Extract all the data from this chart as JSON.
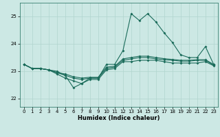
{
  "title": "",
  "xlabel": "Humidex (Indice chaleur)",
  "xlim": [
    -0.5,
    23.5
  ],
  "ylim": [
    21.7,
    25.5
  ],
  "yticks": [
    22,
    23,
    24,
    25
  ],
  "xticks": [
    0,
    1,
    2,
    3,
    4,
    5,
    6,
    7,
    8,
    9,
    10,
    11,
    12,
    13,
    14,
    15,
    16,
    17,
    18,
    19,
    20,
    21,
    22,
    23
  ],
  "bg_color": "#cce8e4",
  "line_color": "#1a6b5a",
  "grid_color": "#b0d4ce",
  "line1": [
    23.25,
    23.1,
    23.1,
    23.05,
    23.0,
    22.85,
    22.4,
    22.55,
    22.75,
    22.75,
    23.25,
    23.25,
    23.75,
    25.1,
    24.85,
    25.1,
    24.8,
    24.4,
    24.05,
    23.6,
    23.5,
    23.5,
    23.9,
    23.25
  ],
  "line2": [
    23.25,
    23.1,
    23.1,
    23.05,
    22.9,
    22.75,
    22.65,
    22.55,
    22.7,
    22.7,
    23.05,
    23.1,
    23.35,
    23.35,
    23.4,
    23.4,
    23.4,
    23.35,
    23.3,
    23.3,
    23.3,
    23.3,
    23.35,
    23.2
  ],
  "line3": [
    23.25,
    23.1,
    23.1,
    23.05,
    22.95,
    22.85,
    22.75,
    22.7,
    22.75,
    22.75,
    23.1,
    23.15,
    23.4,
    23.45,
    23.5,
    23.5,
    23.45,
    23.42,
    23.4,
    23.37,
    23.37,
    23.4,
    23.4,
    23.22
  ],
  "line4": [
    23.25,
    23.1,
    23.1,
    23.05,
    22.95,
    22.9,
    22.8,
    22.75,
    22.78,
    22.78,
    23.15,
    23.18,
    23.45,
    23.5,
    23.55,
    23.55,
    23.5,
    23.46,
    23.43,
    23.4,
    23.4,
    23.42,
    23.42,
    23.25
  ]
}
